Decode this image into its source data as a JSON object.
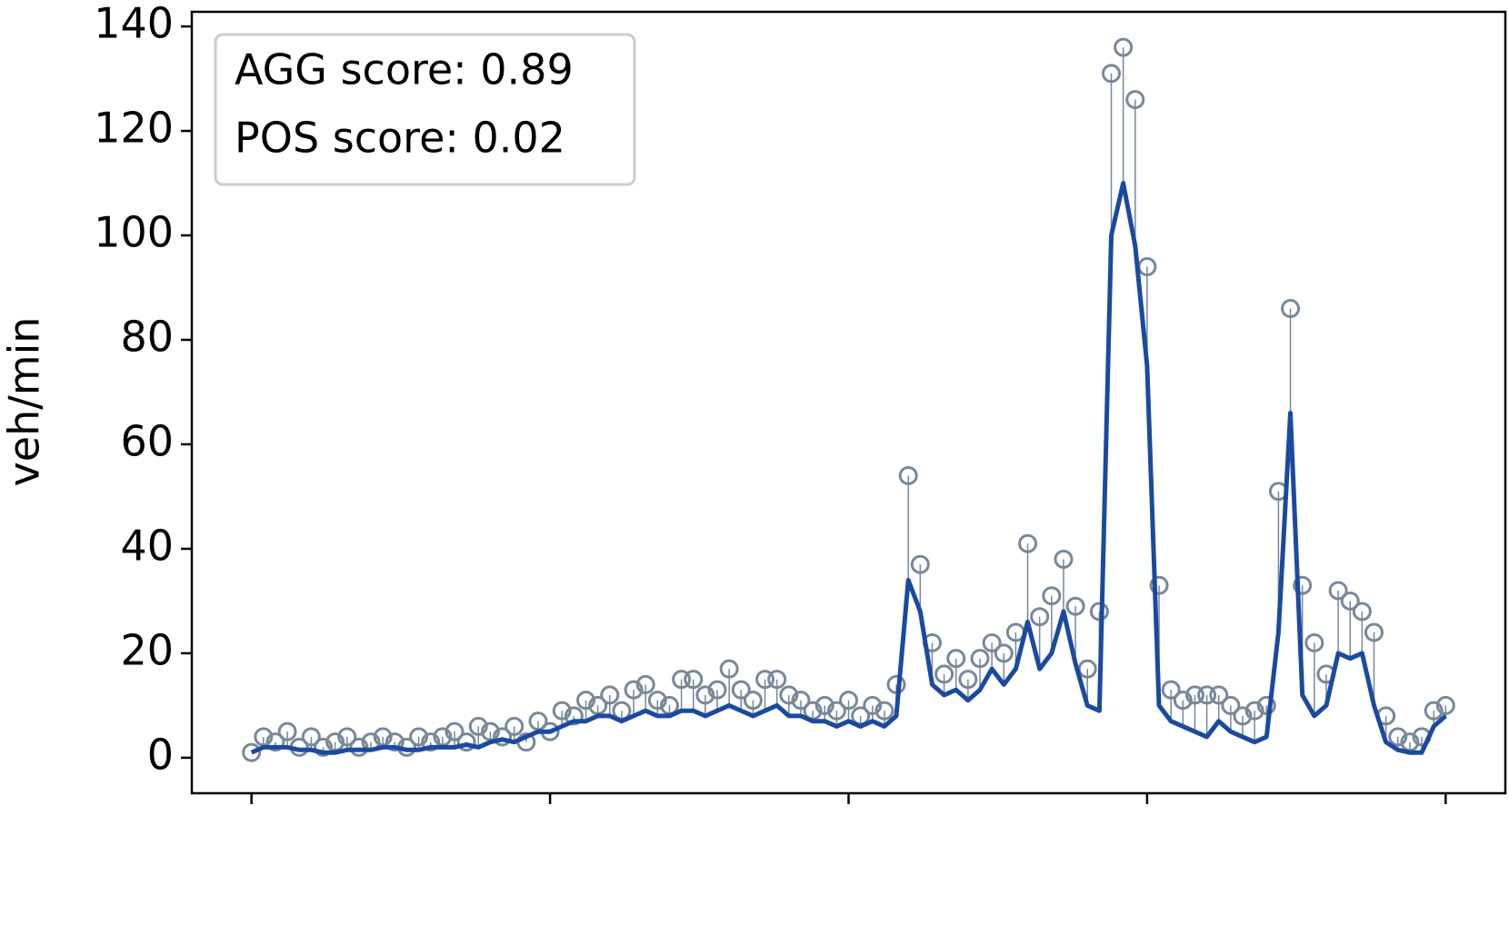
{
  "chart_data": {
    "type": "line",
    "ylabel": "veh/min",
    "annotations": [
      "AGG score: 0.89",
      "POS score: 0.02"
    ],
    "xlim": [
      -20,
      420
    ],
    "xticks": [
      0,
      100,
      200,
      300,
      400
    ],
    "ylim": [
      -6.8,
      142.8
    ],
    "yticks": [
      0,
      20,
      40,
      60,
      80,
      100,
      120,
      140
    ],
    "x": [
      0,
      4,
      8,
      12,
      16,
      20,
      24,
      28,
      32,
      36,
      40,
      44,
      48,
      52,
      56,
      60,
      64,
      68,
      72,
      76,
      80,
      84,
      88,
      92,
      96,
      100,
      104,
      108,
      112,
      116,
      120,
      124,
      128,
      132,
      136,
      140,
      144,
      148,
      152,
      156,
      160,
      164,
      168,
      172,
      176,
      180,
      184,
      188,
      192,
      196,
      200,
      204,
      208,
      212,
      216,
      220,
      224,
      228,
      232,
      236,
      240,
      244,
      248,
      252,
      256,
      260,
      264,
      268,
      272,
      276,
      280,
      284,
      288,
      292,
      296,
      300,
      304,
      308,
      312,
      316,
      320,
      324,
      328,
      332,
      336,
      340,
      344,
      348,
      352,
      356,
      360,
      364,
      368,
      372,
      376,
      380,
      384,
      388,
      392,
      396,
      400
    ],
    "series": [
      {
        "kind": "scatter",
        "color": "#778899",
        "values": [
          1,
          4,
          3,
          5,
          2,
          4,
          2,
          3,
          4,
          2,
          3,
          4,
          3,
          2,
          4,
          3,
          4,
          5,
          3,
          6,
          5,
          4,
          6,
          3,
          7,
          5,
          9,
          8,
          11,
          10,
          12,
          9,
          13,
          14,
          11,
          10,
          15,
          15,
          12,
          13,
          17,
          13,
          11,
          15,
          15,
          12,
          11,
          9,
          10,
          9,
          11,
          8,
          10,
          9,
          14,
          54,
          37,
          22,
          16,
          19,
          15,
          19,
          22,
          20,
          24,
          41,
          27,
          31,
          38,
          29,
          17,
          28,
          131,
          136,
          126,
          94,
          33,
          13,
          11,
          12,
          12,
          12,
          10,
          8,
          9,
          10,
          51,
          86,
          33,
          22,
          16,
          32,
          30,
          28,
          24,
          8,
          4,
          3,
          4,
          9,
          10
        ]
      },
      {
        "kind": "line",
        "color": "#1a4aa0",
        "values": [
          1,
          2,
          2,
          2,
          1.5,
          1.5,
          1,
          1,
          1.5,
          1.5,
          1.5,
          2,
          2,
          1.5,
          1.5,
          2,
          2,
          2,
          2.5,
          2,
          3,
          3.5,
          3,
          4,
          5,
          5,
          6,
          7,
          7,
          8,
          8,
          7,
          8,
          9,
          8,
          8,
          9,
          9,
          8,
          9,
          10,
          9,
          8,
          9,
          10,
          8,
          8,
          7,
          7,
          6,
          7,
          6,
          7,
          6,
          8,
          34,
          28,
          14,
          12,
          13,
          11,
          13,
          17,
          14,
          17,
          26,
          17,
          20,
          28,
          18,
          10,
          9,
          100,
          110,
          98,
          75,
          10,
          7,
          6,
          5,
          4,
          7,
          5,
          4,
          3,
          4,
          24,
          66,
          12,
          8,
          10,
          20,
          19,
          20,
          10,
          3,
          1.5,
          1,
          1,
          6,
          8
        ]
      }
    ]
  }
}
